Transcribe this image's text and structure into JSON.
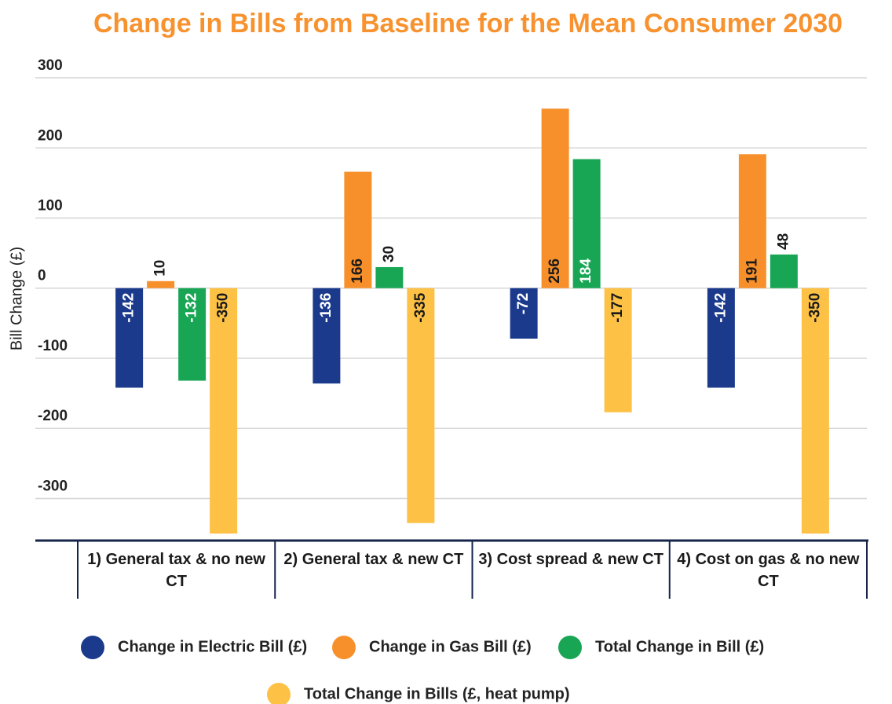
{
  "chart_data": {
    "type": "bar",
    "title": "Change in Bills from Baseline for the Mean Consumer 2030",
    "y_label": "Bill Change (£)",
    "categories": [
      "1) General tax & no new CT",
      "2) General tax & new CT",
      "3) Cost spread & new CT",
      "4) Cost on gas & no new CT"
    ],
    "series": [
      {
        "name": "Change in Electric Bill (£)",
        "color": "#1b3a8c",
        "values": [
          -142,
          -136,
          -72,
          -142
        ]
      },
      {
        "name": "Change in Gas Bill (£)",
        "color": "#f7902b",
        "values": [
          10,
          166,
          256,
          191
        ]
      },
      {
        "name": "Total Change in Bill (£)",
        "color": "#19a654",
        "values": [
          -132,
          30,
          184,
          48
        ]
      },
      {
        "name": "Total Change in Bills (£, heat pump)",
        "color": "#fdc145",
        "values": [
          -350,
          -335,
          -177,
          -350
        ]
      }
    ],
    "ylim": [
      -360,
      300
    ],
    "yticks": [
      -300,
      -200,
      -100,
      0,
      100,
      200,
      300
    ],
    "grid": true
  }
}
